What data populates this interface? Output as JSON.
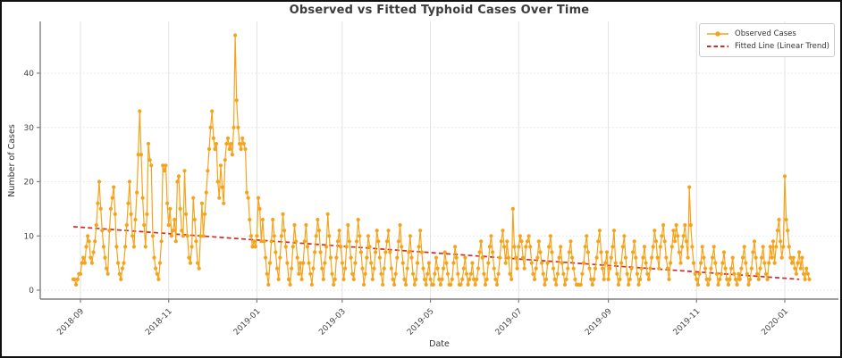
{
  "chart_data": {
    "type": "line",
    "title": "Observed vs Fitted Typhoid Cases Over Time",
    "xlabel": "Date",
    "ylabel": "Number of Cases",
    "start_date": "2018-08-27",
    "x_tick_labels": [
      "2018-09",
      "2018-11",
      "2019-01",
      "2019-03",
      "2019-05",
      "2019-07",
      "2019-09",
      "2019-11",
      "2020-01"
    ],
    "y_ticks": [
      0,
      10,
      20,
      30,
      40
    ],
    "ylim": [
      -1.5,
      49
    ],
    "grid": true,
    "legend_position": "upper right",
    "series": [
      {
        "name": "Observed Cases",
        "type": "line-markers",
        "color": "#F5A31B",
        "marker": "circle",
        "values": [
          2,
          2,
          1,
          2,
          3,
          3,
          5,
          6,
          5,
          8,
          10,
          9,
          6,
          5,
          7,
          9,
          12,
          16,
          20,
          15,
          11,
          8,
          6,
          4,
          3,
          11,
          15,
          17,
          19,
          14,
          8,
          5,
          3,
          2,
          4,
          5,
          8,
          12,
          16,
          20,
          14,
          10,
          8,
          13,
          18,
          25,
          33,
          25,
          17,
          12,
          8,
          14,
          27,
          24,
          23,
          10,
          6,
          4,
          3,
          2,
          5,
          9,
          23,
          22,
          23,
          16,
          12,
          15,
          10,
          11,
          13,
          9,
          20,
          21,
          15,
          11,
          10,
          22,
          14,
          10,
          6,
          5,
          8,
          17,
          13,
          9,
          5,
          4,
          10,
          16,
          10,
          14,
          18,
          22,
          26,
          30,
          33,
          28,
          26,
          27,
          20,
          17,
          23,
          19,
          16,
          24,
          27,
          28,
          26,
          27,
          25,
          30,
          47,
          35,
          30,
          27,
          26,
          28,
          27,
          26,
          18,
          17,
          13,
          10,
          8,
          9,
          8,
          10,
          17,
          15,
          9,
          13,
          9,
          6,
          3,
          1,
          5,
          9,
          13,
          10,
          7,
          4,
          2,
          6,
          10,
          14,
          11,
          8,
          5,
          2,
          1,
          4,
          8,
          12,
          9,
          6,
          3,
          5,
          2,
          5,
          9,
          12,
          8,
          5,
          3,
          1,
          4,
          7,
          10,
          13,
          11,
          7,
          4,
          2,
          5,
          8,
          14,
          10,
          6,
          3,
          1,
          2,
          6,
          9,
          11,
          8,
          5,
          2,
          4,
          8,
          12,
          9,
          6,
          3,
          2,
          5,
          9,
          13,
          10,
          7,
          4,
          1,
          3,
          6,
          10,
          8,
          5,
          2,
          4,
          7,
          11,
          9,
          6,
          3,
          1,
          4,
          7,
          9,
          11,
          7,
          4,
          2,
          1,
          3,
          6,
          9,
          12,
          8,
          5,
          2,
          1,
          4,
          7,
          10,
          6,
          3,
          1,
          2,
          5,
          8,
          11,
          7,
          4,
          2,
          1,
          3,
          5,
          2,
          1,
          1,
          3,
          6,
          4,
          2,
          1,
          2,
          4,
          7,
          5,
          3,
          1,
          1,
          2,
          5,
          8,
          6,
          3,
          1,
          1,
          2,
          4,
          6,
          3,
          1,
          2,
          3,
          5,
          2,
          1,
          2,
          4,
          7,
          9,
          6,
          3,
          1,
          2,
          5,
          8,
          10,
          7,
          4,
          2,
          1,
          3,
          6,
          9,
          11,
          8,
          5,
          9,
          6,
          3,
          2,
          15,
          8,
          6,
          4,
          8,
          10,
          9,
          6,
          4,
          8,
          9,
          10,
          8,
          5,
          3,
          2,
          4,
          6,
          9,
          7,
          5,
          3,
          1,
          2,
          5,
          8,
          10,
          7,
          4,
          2,
          1,
          3,
          6,
          8,
          5,
          3,
          1,
          2,
          4,
          7,
          9,
          6,
          4,
          2,
          1,
          1,
          1,
          1,
          3,
          5,
          8,
          10,
          7,
          4,
          2,
          1,
          2,
          4,
          6,
          9,
          11,
          7,
          4,
          2,
          5,
          7,
          2,
          4,
          6,
          8,
          11,
          5,
          3,
          1,
          2,
          5,
          8,
          10,
          6,
          3,
          1,
          2,
          4,
          7,
          9,
          6,
          3,
          1,
          2,
          4,
          6,
          8,
          5,
          3,
          2,
          4,
          6,
          8,
          11,
          9,
          6,
          4,
          8,
          10,
          12,
          9,
          6,
          4,
          2,
          5,
          8,
          11,
          9,
          12,
          10,
          7,
          5,
          8,
          10,
          12,
          9,
          6,
          19,
          12,
          8,
          5,
          3,
          2,
          1,
          3,
          5,
          8,
          6,
          4,
          2,
          1,
          2,
          4,
          6,
          8,
          5,
          3,
          1,
          2,
          3,
          5,
          7,
          4,
          2,
          1,
          2,
          4,
          6,
          3,
          2,
          1,
          3,
          2,
          4,
          6,
          8,
          5,
          3,
          1,
          2,
          4,
          7,
          9,
          6,
          3,
          2,
          4,
          6,
          8,
          5,
          3,
          2,
          5,
          8,
          6,
          9,
          5,
          8,
          11,
          13,
          9,
          6,
          8,
          21,
          13,
          11,
          8,
          6,
          5,
          6,
          4,
          3,
          5,
          7,
          4,
          6,
          3,
          2,
          4,
          3,
          2
        ]
      },
      {
        "name": "Fitted Line (Linear Trend)",
        "type": "dashed-trend",
        "color": "#CE2B2B",
        "trend": {
          "start_value": 11.7,
          "end_value": 2.0
        }
      }
    ]
  }
}
